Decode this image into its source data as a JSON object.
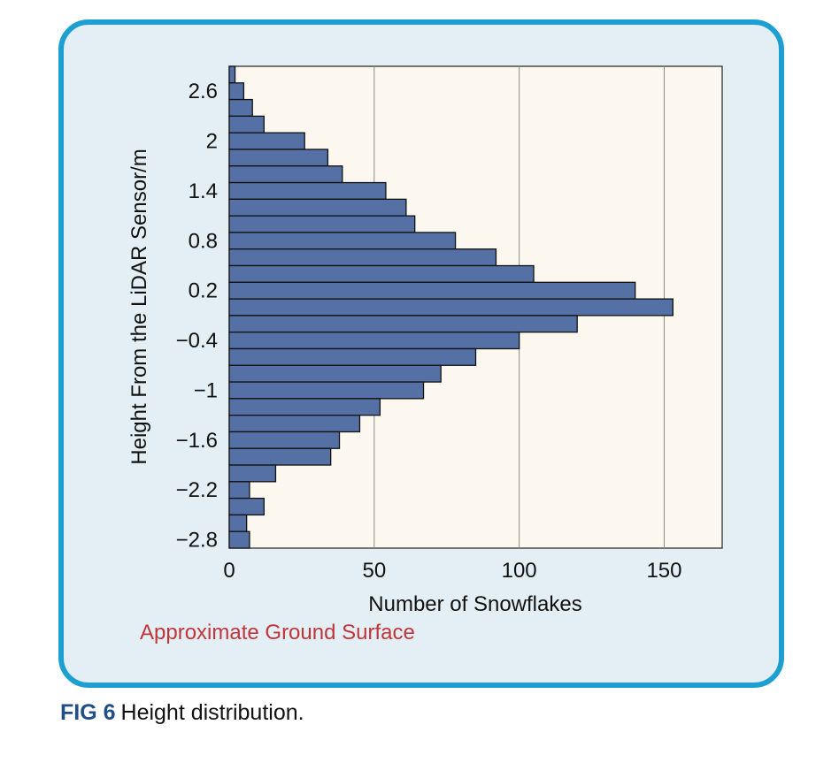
{
  "caption": {
    "label": "FIG 6",
    "text": "Height distribution."
  },
  "colors": {
    "bar": "#5470a4",
    "bar_stroke": "#111111",
    "plot_bg": "#fcf8ef",
    "panel_bg": "#e3eff4",
    "panel_border": "#1e9fd2",
    "annotation": "#c0353a"
  },
  "chart_data": {
    "type": "bar",
    "orientation": "horizontal",
    "xlabel": "Number of Snowflakes",
    "ylabel": "Height From the LiDAR Sensor/m",
    "xlim": [
      0,
      170
    ],
    "xticks": [
      0,
      50,
      100,
      150
    ],
    "yticks": [
      {
        "value": 2.6,
        "label": "2.6"
      },
      {
        "value": 2.0,
        "label": "2"
      },
      {
        "value": 1.4,
        "label": "1.4"
      },
      {
        "value": 0.8,
        "label": "0.8"
      },
      {
        "value": 0.2,
        "label": "0.2"
      },
      {
        "value": -0.4,
        "label": "−0.4"
      },
      {
        "value": -1.0,
        "label": "−1"
      },
      {
        "value": -1.6,
        "label": "−1.6"
      },
      {
        "value": -2.2,
        "label": "−2.2"
      },
      {
        "value": -2.8,
        "label": "−2.8"
      }
    ],
    "ylim": [
      -2.9,
      2.9
    ],
    "bin_width": 0.2,
    "grid": "vertical",
    "heights": [
      2.8,
      2.6,
      2.4,
      2.2,
      2.0,
      1.8,
      1.6,
      1.4,
      1.2,
      1.0,
      0.8,
      0.6,
      0.4,
      0.2,
      0.0,
      -0.2,
      -0.4,
      -0.6,
      -0.8,
      -1.0,
      -1.2,
      -1.4,
      -1.6,
      -1.8,
      -2.0,
      -2.2,
      -2.4,
      -2.6,
      -2.8
    ],
    "values": [
      2,
      5,
      8,
      12,
      26,
      34,
      39,
      54,
      61,
      64,
      78,
      92,
      105,
      140,
      153,
      120,
      100,
      85,
      73,
      67,
      52,
      45,
      38,
      35,
      16,
      7,
      12,
      6,
      7
    ],
    "annotation": "Approximate Ground Surface"
  }
}
